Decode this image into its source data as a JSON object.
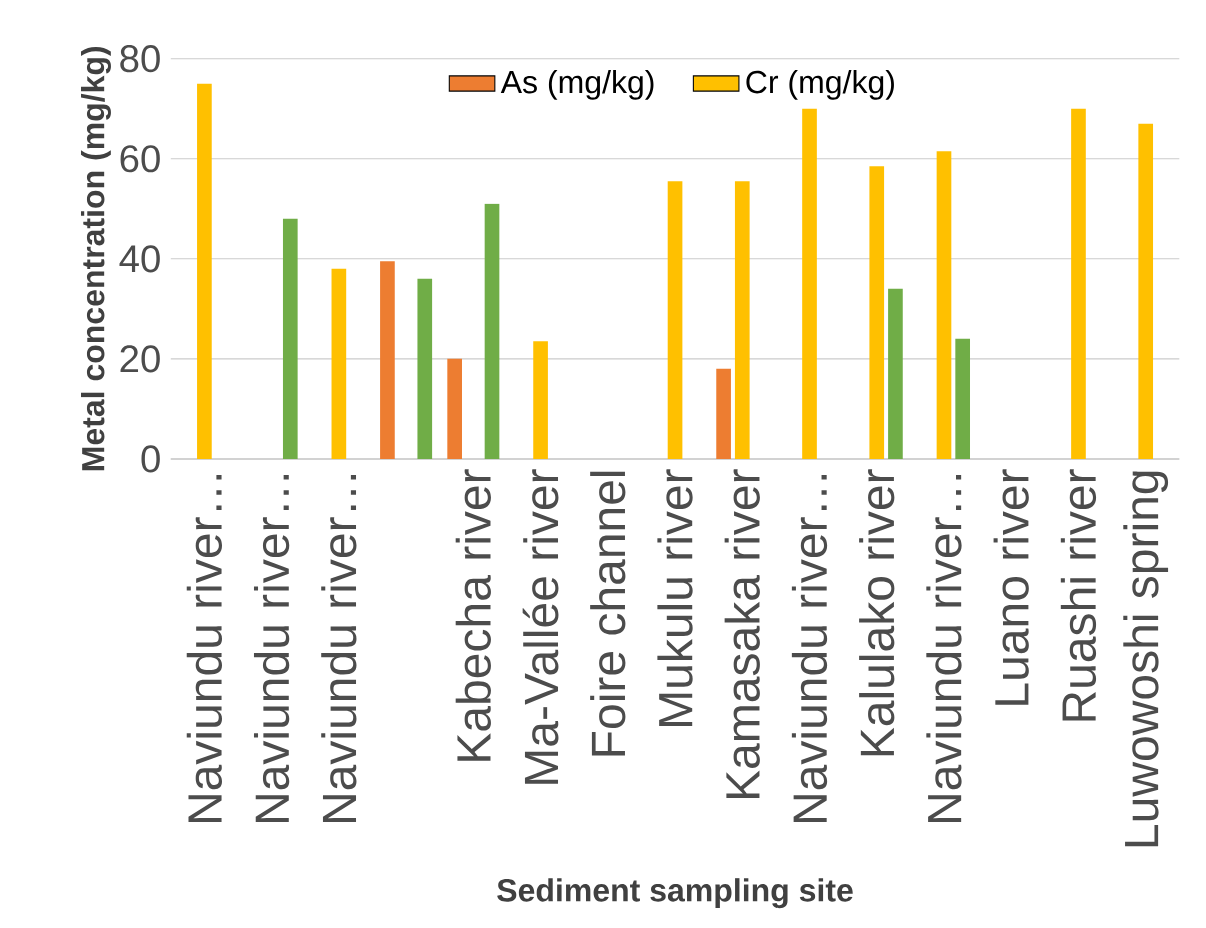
{
  "chart_data": {
    "type": "bar",
    "ylabel": "Metal concentration (mg/kg)",
    "xlabel": "Sediment sampling site",
    "categories": [
      "Naviundu river…",
      "Naviundu river…",
      "Naviundu river…",
      null,
      "Kabecha river",
      "Ma-Vallée river",
      "Foire channel",
      "Mukulu river",
      "Kamasaka river",
      "Naviundu river…",
      "Kalulako river",
      "Naviundu river…",
      "Luano river",
      "Ruashi river",
      "Luwowoshi spring"
    ],
    "series": [
      {
        "name": "As (mg/kg)",
        "color": "#ed7d31",
        "values": [
          null,
          null,
          null,
          39.5,
          20,
          null,
          null,
          null,
          18,
          null,
          null,
          null,
          null,
          null,
          null
        ]
      },
      {
        "name": "Cr (mg/kg)",
        "color": "#ffc000",
        "values": [
          75,
          null,
          38,
          null,
          null,
          23.5,
          null,
          55.5,
          55.5,
          70,
          58.5,
          61.5,
          null,
          70,
          67
        ]
      },
      {
        "color": "#70ad47",
        "values": [
          null,
          48,
          null,
          36,
          51,
          null,
          null,
          null,
          null,
          null,
          34,
          24,
          null,
          null,
          null
        ]
      }
    ],
    "ylim": [
      0,
      80
    ],
    "yticks": [
      0,
      20,
      40,
      60,
      80
    ],
    "grid": "y",
    "legend": "top"
  }
}
